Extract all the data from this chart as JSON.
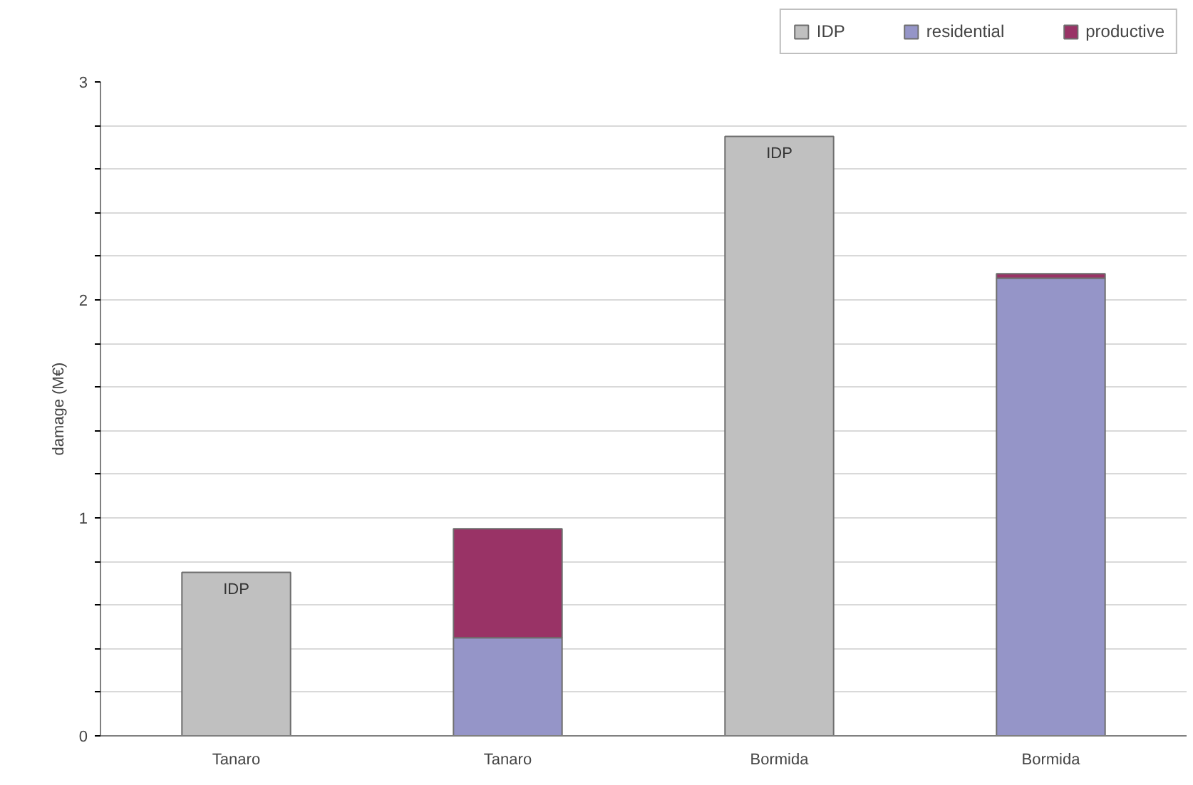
{
  "chart_data": {
    "type": "bar",
    "stacked": true,
    "ylabel": "damage (M€)",
    "categories": [
      "Tanaro",
      "Tanaro",
      "Bormida",
      "Bormida"
    ],
    "series": [
      {
        "name": "IDP",
        "color": "#c0c0c0",
        "values": [
          0.75,
          null,
          2.75,
          null
        ],
        "value_labels": [
          "IDP",
          null,
          "IDP",
          null
        ]
      },
      {
        "name": "residential",
        "color": "#9595c8",
        "values": [
          null,
          0.45,
          null,
          2.1
        ]
      },
      {
        "name": "productive",
        "color": "#993366",
        "values": [
          null,
          0.5,
          null,
          0.02
        ]
      }
    ],
    "ylim": [
      0,
      3
    ],
    "yticks": [
      0,
      {
        "value": 0.2,
        "label": null
      },
      {
        "value": 0.4,
        "label": null
      },
      {
        "value": 0.6,
        "label": null
      },
      {
        "value": 0.8,
        "label": null
      },
      1,
      {
        "value": 1.2,
        "label": null
      },
      {
        "value": 1.4,
        "label": null
      },
      {
        "value": 1.6,
        "label": null
      },
      {
        "value": 1.8,
        "label": null
      },
      2,
      {
        "value": 2.2,
        "label": null
      },
      {
        "value": 2.4,
        "label": null
      },
      {
        "value": 2.6,
        "label": null
      },
      {
        "value": 2.8,
        "label": null
      },
      3
    ],
    "grid": "y",
    "legend": "top right"
  }
}
